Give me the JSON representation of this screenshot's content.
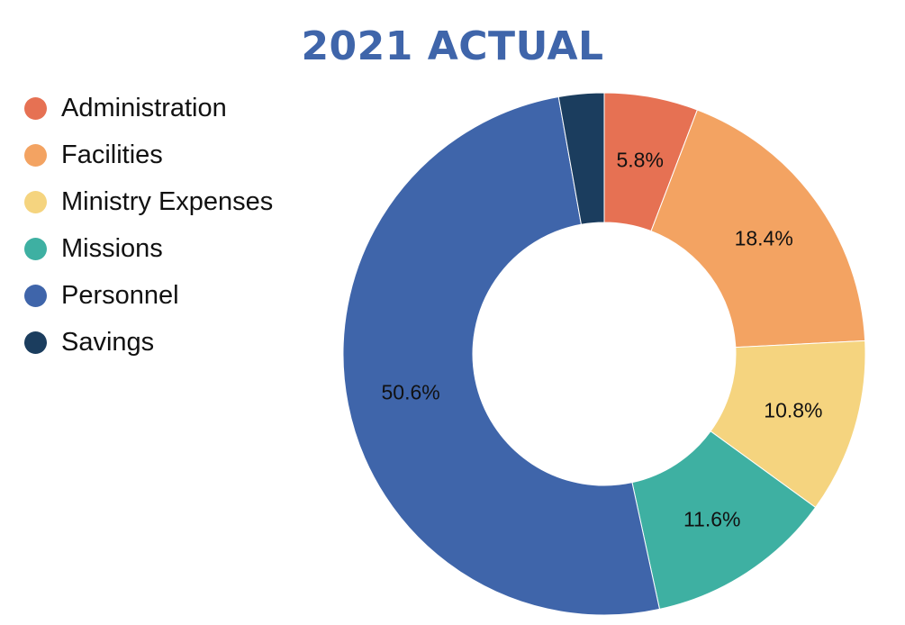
{
  "chart_data": {
    "type": "pie",
    "title": "2021 ACTUAL",
    "title_color": "#3f65aa",
    "legend_position": "top-left",
    "categories": [
      "Administration",
      "Facilities",
      "Ministry Expenses",
      "Missions",
      "Personnel",
      "Savings"
    ],
    "values": [
      5.8,
      18.4,
      10.8,
      11.6,
      50.6,
      2.8
    ],
    "labels": [
      "5.8%",
      "18.4%",
      "10.8%",
      "11.6%",
      "50.6%",
      ""
    ],
    "colors": [
      "#e67153",
      "#f3a362",
      "#f5d47f",
      "#3eb0a2",
      "#3f65aa",
      "#1b3d5e"
    ],
    "donut": true
  }
}
